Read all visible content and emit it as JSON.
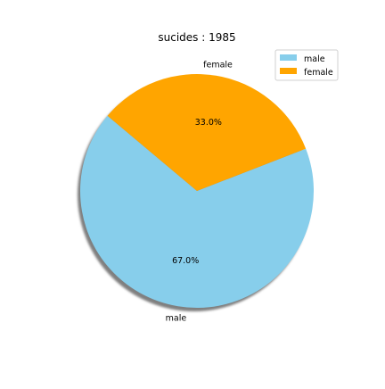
{
  "chart_data": {
    "type": "pie",
    "title": "sucides : 1985",
    "labels": [
      "male",
      "female"
    ],
    "values": [
      67.0,
      33.0
    ],
    "percent_labels": [
      "67.0%",
      "33.0%"
    ],
    "colors": [
      "#87ceeb",
      "#ffa500"
    ],
    "shadow": true,
    "legend": {
      "placement": "top-right",
      "entries": [
        "male",
        "female"
      ]
    }
  }
}
